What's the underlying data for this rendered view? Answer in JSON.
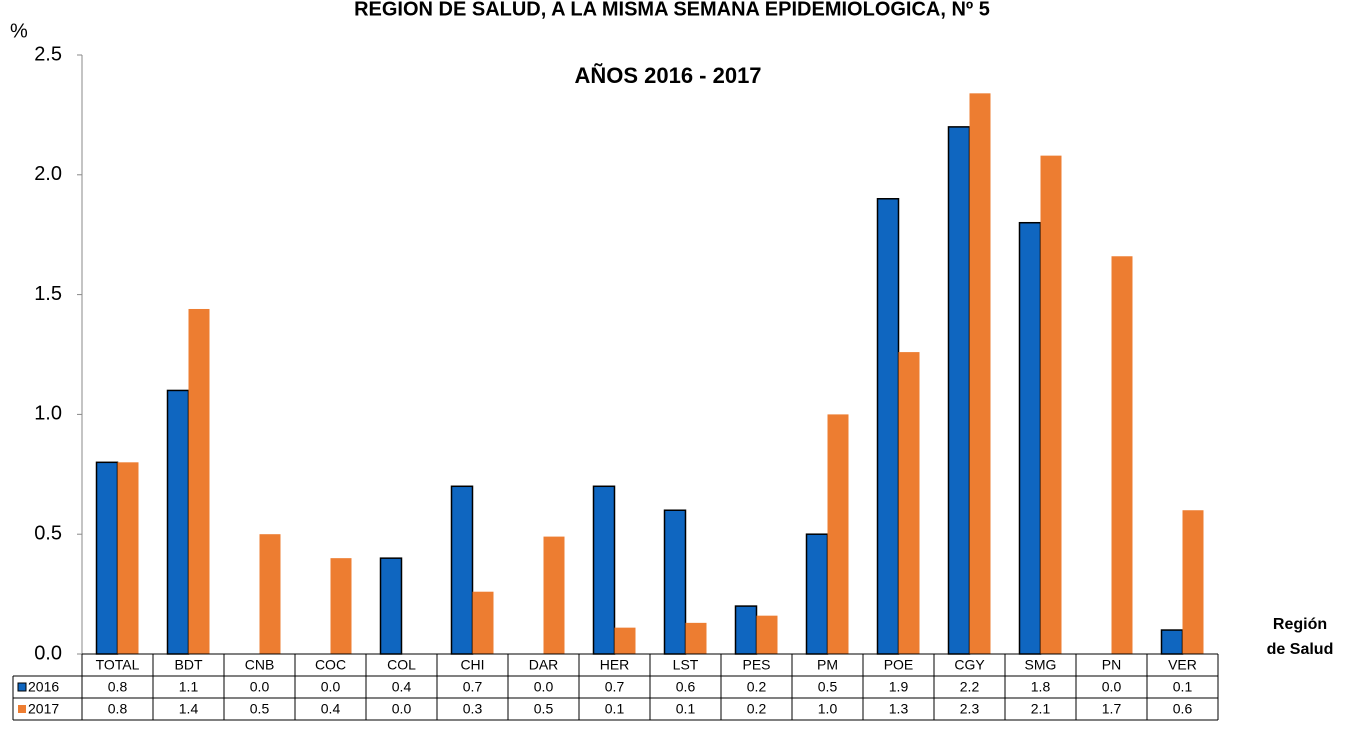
{
  "chart_data": {
    "type": "bar",
    "title": "REGIÓN DE SALUD, A LA MISMA SEMANA EPIDEMIOLÓGICA,  Nº  5",
    "subtitle": "AÑOS 2016 - 2017",
    "y_label": "%",
    "x_label": [
      "Región",
      "de Salud"
    ],
    "categories": [
      "TOTAL",
      "BDT",
      "CNB",
      "COC",
      "COL",
      "CHI",
      "DAR",
      "HER",
      "LST",
      "PES",
      "PM",
      "POE",
      "CGY",
      "SMG",
      "PN",
      "VER"
    ],
    "series": [
      {
        "name": "2016",
        "color": "#0f66c0",
        "values": [
          0.8,
          1.1,
          0,
          0,
          0.4,
          0.7,
          0,
          0.7,
          0.6,
          0.2,
          0.5,
          1.9,
          2.2,
          1.8,
          0,
          0.1
        ],
        "value_labels": [
          "0.8",
          "1.1",
          "0.0",
          "0.0",
          "0.4",
          "0.7",
          "0.0",
          "0.7",
          "0.6",
          "0.2",
          "0.5",
          "1.9",
          "2.2",
          "1.8",
          "0.0",
          "0.1"
        ]
      },
      {
        "name": "2017",
        "color": "#ed7d31",
        "values": [
          0.8,
          1.44,
          0.5,
          0.4,
          0,
          0.26,
          0.49,
          0.11,
          0.13,
          0.16,
          1.0,
          1.26,
          2.34,
          2.08,
          1.66,
          0.6
        ],
        "value_labels": [
          "0.8",
          "1.4",
          "0.5",
          "0.4",
          "0.0",
          "0.3",
          "0.5",
          "0.1",
          "0.1",
          "0.2",
          "1.0",
          "1.3",
          "2.3",
          "2.1",
          "1.7",
          "0.6"
        ]
      }
    ],
    "ylim": [
      0,
      2.5
    ],
    "yticks": [
      {
        "value": 0,
        "label": "0.0"
      },
      0.5,
      {
        "value": 1,
        "label": "1.0"
      },
      1.5,
      {
        "value": 2,
        "label": "2.0"
      },
      2.5
    ],
    "grid": false
  }
}
